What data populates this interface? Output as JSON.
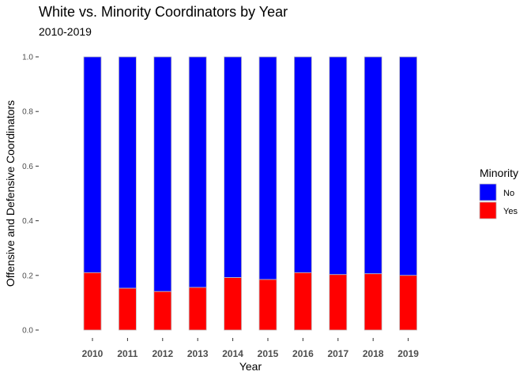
{
  "chart_data": {
    "type": "bar",
    "stacked": true,
    "title": "White vs. Minority Coordinators by Year",
    "subtitle": "2010-2019",
    "xlabel": "Year",
    "ylabel": "Offensive and Defensive Coordinators",
    "ylim": [
      0,
      1
    ],
    "yticks": [
      "0.0",
      "0.2",
      "0.4",
      "0.6",
      "0.8",
      "1.0"
    ],
    "categories": [
      "2010",
      "2011",
      "2012",
      "2013",
      "2014",
      "2015",
      "2016",
      "2017",
      "2018",
      "2019"
    ],
    "series": [
      {
        "name": "No",
        "color": "#0000ff",
        "values": [
          0.79,
          0.847,
          0.859,
          0.844,
          0.808,
          0.815,
          0.79,
          0.797,
          0.794,
          0.8
        ]
      },
      {
        "name": "Yes",
        "color": "#ff0000",
        "values": [
          0.21,
          0.153,
          0.141,
          0.156,
          0.192,
          0.185,
          0.21,
          0.203,
          0.206,
          0.2
        ]
      }
    ],
    "legend": {
      "title": "Minority",
      "position": "right",
      "entries": [
        "No",
        "Yes"
      ]
    },
    "grid": false,
    "bar_edge_color": "#bfbfbf"
  }
}
